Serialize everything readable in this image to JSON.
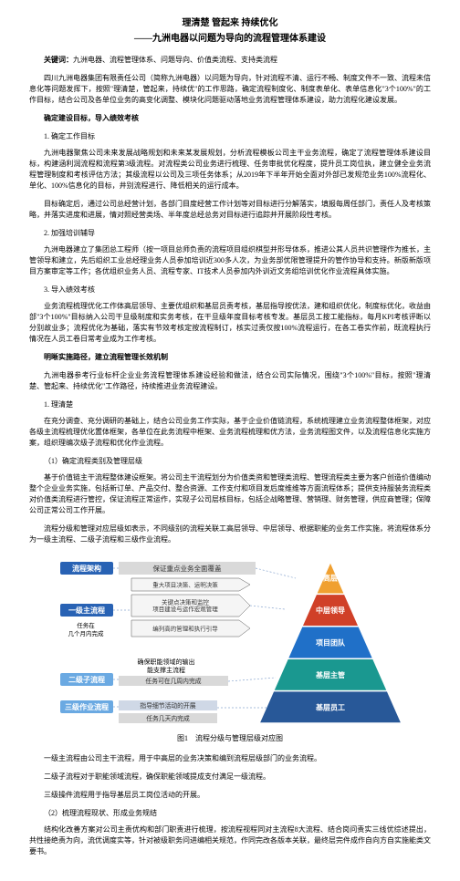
{
  "title": "理清楚 管起来 持续优化",
  "subtitle": "——九洲电器以问题为导向的流程管理体系建设",
  "keywords_label": "关键词：",
  "keywords_text": "九洲电器、流程管理体系、问题导向、价值类流程、支持类流程",
  "intro": "四川九洲电器集团有限责任公司（简称九洲电器）以问题为导向，针对流程不清、运行不畅、制度文件不一致、流程未信息化等问题发挥下，按照\"理清楚，管起来，持续优\"的工作思路，确定流程制度化、制度表单化、表单信息化\"3个100%\"的工作目标，结合公司及各单位业务的高变化调整、模块化问题驱动落地业务流程管理体系建设，助力流程化建设发展。",
  "h1": "确定建设目标，导入绩效考核",
  "s1_1_t": "1. 确定工作目标",
  "s1_1_p": "九洲电器聚焦公司未来发展战略规划和未来某发展规划，分析流程模板公司主干业务流程，确定了流程管理体系建设目标，构建涵利润流程和流程第3级流程。对流程类公司业务进行梳理、任务审批优化程度，提升员工岗位执，建立健全业务流程管理制度和考核评估方法；其级流程以公司及三项任务体系；从2019年下半年开始全面对外部已发规范业务100%流程化、单化、100%信息化的目标，井别流程进行、降低相关的运行成本。",
  "s1_2_t": "目标确定后，通过公司总经营计划，各部门目度经营工作计划等对目标进行分解落实，填报每周任部门，责任人及考核策略，并落实进度和进展，情对照经营类场、半年度总经总务对目标进行追踪并开展阶段性考核。",
  "s1_3_t": "2. 加强培训辅导",
  "s1_3_p": "九洲电器建立了集团总工程师（按一项目总师负责的流程项目组织棋型并形导体系，推进公其人员共识管理作为推长，主管领导和建立，先后组织工业总经理业务人员参加培训近300多人次，为业务部优限管理提升的管作协导和支持。新版新版项目方案审定等工作；各优组织业务人员、流程专家、IT技术人员参加内外训近文务组培训优化作业流程具体实施。",
  "s1_4_t": "3. 导入绩效考核",
  "s1_4_p": "业务流程梳理优化工作体高层领导、主要优组织和基层员责考核，基层指导按优法，建和组织优化，制度标优化，收益由部\"3个100%\"目标纳入公司干旦级制度和实务考核，在干旦级年度目标考核专发。基层员工按工能指标，每月KPI考核评断以分别故业多；流程优化为基础，落实有节效考核定按流程制订，核实过责仅按100%流程运行，在各工卷实作前，既流程执行情况在人员工卷日常考业成为工作考核。",
  "h2": "明晰实施路径，建立流程管理长效机制",
  "h2_intro": "九洲电器参考行业标杆企业业务流程管理体系建设经验和做法，结合公司实际情况，围绕\"3个100%\"目标，按照\"理清楚、管起来、持续优化\"工作路径，持续推进业务流程建设。",
  "s2_1_t": "1. 理清楚",
  "s2_1_p": "在充分调查、充分调研的基础上，结合公司业务工作实际，基于企业价值链流程，系统梳理建立业务流程整体框架，对应各级主流程梳理优化置体框架，各单位在此务流程中框架、业务流程梳理和优方法，业务流程图文件，以及流程信息化实施方案，组织理编次级子流程和优化作业流程。",
  "s2_1_1_t": "（1）确定流程类别及管理层级",
  "s2_1_1_p1": "基于价值链主干流程整体建设框架。将公司主干流程划分为价值类资和管理类流程、管理流程类主要为客户创造价值编动整个企业业务实施，包括新订单、产品交付、整合资源、工作支付和项目发后度维维等方面流程体系；提供支持服装务流程类对价值类流程进行管控，保证流程正常运作，实现子公司层核目标，包括企战略管理、营销理、财务管理，供应商管理；保障公司正常公司工作开展。",
  "s2_1_1_p2": "流程分级和管理对应层级如表示，不同级别的流程关联工高层领导、中层领导、根据职能的业务工作实施，将流程体系分为一级主流程、二级子流程和三级作业流程。",
  "fig": {
    "caption": "图1　流程分级与管理层级对应图",
    "col_arch": {
      "label": "流程架构",
      "bg": "#2862b4",
      "fg": "#ffffff"
    },
    "col_l1": {
      "label": "一级主流程",
      "bg": "#2862b4",
      "fg": "#ffffff"
    },
    "col_l2": {
      "label": "二级子流程",
      "bg": "#6aa9e2",
      "fg": "#ffffff"
    },
    "col_l3": {
      "label": "三级作业流程",
      "bg": "#6aa9e2",
      "fg": "#ffffff"
    },
    "arch_note": "保证重点业务全面覆盖",
    "arch_arrow": "重大项目决策、运明决策",
    "l1_arrow1": "关键点决策和监控 项目建设与运作宏观管理",
    "l1_arrow2": "编列高的管理和执行引导",
    "l1_task": "任务在 几个月内完成",
    "l2_note1": "确保职能领域的输出 能支撑主流程",
    "l2_note2": "任务可在几周内完成",
    "l3_note1": "指导细节活动的开展",
    "l3_note2": "任务几天内完成",
    "tri": {
      "levels": [
        {
          "label": "高层",
          "color": "#f0a030"
        },
        {
          "label": "中层领导",
          "color": "#d04028"
        },
        {
          "label": "项目团队",
          "color": "#2070c8"
        },
        {
          "label": "基层主管",
          "color": "#1a9890"
        },
        {
          "label": "基层员工",
          "color": "#285898"
        }
      ]
    }
  },
  "after_fig_1": "一级主流程由公司主干流程，用于中高层的业务决策和编到流程层级部门的业务流程。",
  "after_fig_2": "二级子流程对于职能领域流程，确保职能领域提成支付满足一级流程。",
  "after_fig_3": "三级操件流程用于指导基层员工岗位活动的开展。",
  "s2_1_2_t": "（2）梳理流程现状、形成业务规结",
  "s2_1_2_p": "结构化改善方案对公司主责优构和部门职责进行梳理，按流程视程同对主流程8大流程、结合岗问责实三线优综述提出，共性接绝责为向，流优调度实等，针对被级职务问进编相关规范，作同完改各版本关联，最终层完件成作自向方自实施能类文要书。"
}
